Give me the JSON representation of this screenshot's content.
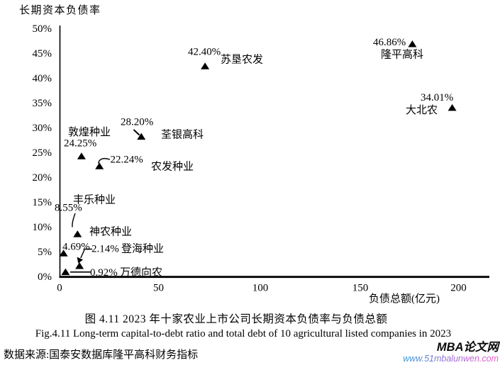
{
  "chart_data": {
    "type": "scatter",
    "title_zh": "图 4.11 2023 年十家农业上市公司长期资本负债率与负债总额",
    "title_en": "Fig.4.11 Long-term capital-to-debt ratio and total debt of 10 agricultural listed companies in 2023",
    "ylabel": "长期资本负债率",
    "xlabel": "负债总额(亿元)",
    "xlim": [
      0,
      200
    ],
    "ylim": [
      "0%",
      "50%"
    ],
    "grid": false,
    "legend": false,
    "marker": "filled-triangle",
    "y_tick_labels": [
      "50%",
      "45%",
      "40%",
      "35%",
      "30%",
      "25%",
      "20%",
      "15%",
      "10%",
      "5%",
      "0%"
    ],
    "x_tick_labels": [
      "0",
      "50",
      "100",
      "150",
      "200"
    ],
    "points": [
      {
        "name": "隆平高科",
        "label": "46.86%",
        "ratio_pct": 46.86,
        "debt_yi_est": 177
      },
      {
        "name": "苏垦农发",
        "label": "42.40%",
        "ratio_pct": 42.4,
        "debt_yi_est": 73
      },
      {
        "name": "大北农",
        "label": "34.01%",
        "ratio_pct": 34.01,
        "debt_yi_est": 197
      },
      {
        "name": "荃银高科",
        "label": "28.20%",
        "ratio_pct": 28.2,
        "debt_yi_est": 41
      },
      {
        "name": "敦煌种业",
        "label": "24.25%",
        "ratio_pct": 24.25,
        "debt_yi_est": 11
      },
      {
        "name": "农发种业",
        "label": "22.24%",
        "ratio_pct": 22.24,
        "debt_yi_est": 20
      },
      {
        "name": "丰乐种业",
        "label": "8.55%",
        "ratio_pct": 8.55,
        "debt_yi_est": 9
      },
      {
        "name": "神农种业",
        "label": "4.69%",
        "ratio_pct": 4.69,
        "debt_yi_est": 2
      },
      {
        "name": "登海种业",
        "label": "2.14%",
        "ratio_pct": 2.14,
        "debt_yi_est": 10
      },
      {
        "name": "万德向农",
        "label": "0.92%",
        "ratio_pct": 0.92,
        "debt_yi_est": 3
      }
    ]
  },
  "captions": {
    "zh": "图 4.11 2023 年十家农业上市公司长期资本负债率与负债总额",
    "en": "Fig.4.11 Long-term capital-to-debt ratio and total debt of 10 agricultural listed companies in 2023",
    "source": "数据来源:国泰安数据库隆平高科财务指标"
  },
  "watermark": {
    "brand": "MBA论文网",
    "url": "www.51mbalunwen.com"
  }
}
